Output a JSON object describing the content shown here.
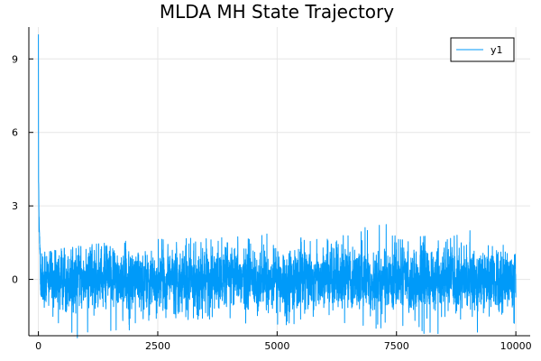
{
  "chart_data": {
    "type": "line",
    "title": "MLDA MH State Trajectory",
    "xlabel": "",
    "ylabel": "",
    "xlim": [
      -200,
      10300
    ],
    "ylim": [
      -2.3,
      10.3
    ],
    "x_ticks": [
      0,
      2500,
      5000,
      7500,
      10000
    ],
    "x_tick_labels": [
      "0",
      "2500",
      "5000",
      "7500",
      "10000"
    ],
    "y_ticks": [
      0,
      3,
      6,
      9
    ],
    "y_tick_labels": [
      "0",
      "3",
      "6",
      "9"
    ],
    "grid": true,
    "legend_position": "top-right",
    "series": [
      {
        "name": "y1",
        "color": "#009af9",
        "x_start": 0,
        "x_end": 10000,
        "initial_value": 10.0,
        "envelope": [
          [
            0,
            10.0
          ],
          [
            1,
            8.5
          ],
          [
            3,
            6.0
          ],
          [
            8,
            3.6
          ],
          [
            20,
            2.2
          ],
          [
            40,
            1.2
          ],
          [
            150,
            1.1
          ],
          [
            600,
            1.3
          ],
          [
            1000,
            1.4
          ],
          [
            2000,
            1.6
          ],
          [
            3500,
            1.7
          ],
          [
            4500,
            1.8
          ],
          [
            4800,
            2.2
          ],
          [
            5000,
            1.8
          ],
          [
            6000,
            1.6
          ],
          [
            6800,
            2.3
          ],
          [
            7200,
            2.5
          ],
          [
            7500,
            1.7
          ],
          [
            8500,
            1.8
          ],
          [
            9400,
            2.2
          ],
          [
            9700,
            2.3
          ],
          [
            10000,
            1.8
          ]
        ],
        "lower_envelope": [
          [
            0,
            -1.2
          ],
          [
            600,
            -2.4
          ],
          [
            1500,
            -2.4
          ],
          [
            2500,
            -1.8
          ],
          [
            3500,
            -1.7
          ],
          [
            4500,
            -1.8
          ],
          [
            5500,
            -2.0
          ],
          [
            7000,
            -2.0
          ],
          [
            8000,
            -2.2
          ],
          [
            8500,
            -2.4
          ],
          [
            9500,
            -2.2
          ],
          [
            10000,
            -1.8
          ]
        ],
        "typical_range": [
          -1.0,
          1.0
        ]
      }
    ]
  }
}
